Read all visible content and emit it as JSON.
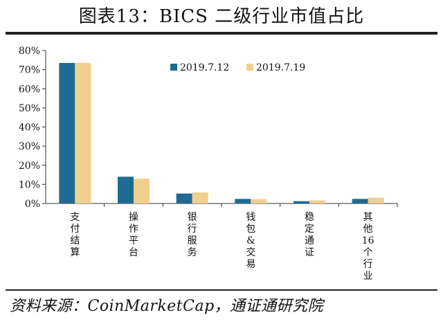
{
  "title": "图表13：BICS 二级行业市值占比",
  "source": "资料来源：CoinMarketCap，通证通研究院",
  "colors": {
    "series1": "#1f6b93",
    "series2": "#f0d08f",
    "axis": "#333333"
  },
  "chart_data": {
    "type": "bar",
    "categories": [
      "支付结算",
      "操作平台",
      "银行服务",
      "钱包&交易",
      "稳定通证",
      "其他16个行业"
    ],
    "series": [
      {
        "name": "2019.7.12",
        "values": [
          73.5,
          14.0,
          5.2,
          2.4,
          1.2,
          2.4
        ]
      },
      {
        "name": "2019.7.19",
        "values": [
          73.5,
          13.0,
          5.8,
          2.3,
          1.6,
          3.0
        ]
      }
    ],
    "ylim": [
      0,
      80
    ],
    "yticks": [
      "0%",
      "10%",
      "20%",
      "30%",
      "40%",
      "50%",
      "60%",
      "70%",
      "80%"
    ],
    "legend": "top-right",
    "grid": false
  }
}
